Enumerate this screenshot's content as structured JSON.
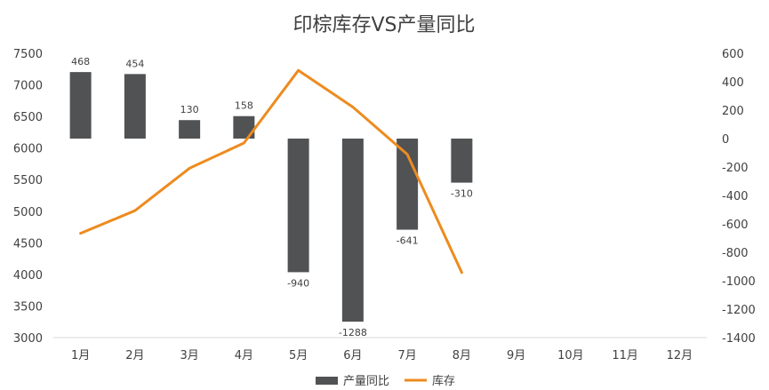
{
  "chart_data": {
    "type": "bar+line",
    "title": "印棕库存VS产量同比",
    "categories": [
      "1月",
      "2月",
      "3月",
      "4月",
      "5月",
      "6月",
      "7月",
      "8月",
      "9月",
      "10月",
      "11月",
      "12月"
    ],
    "series": [
      {
        "name": "产量同比",
        "type": "bar",
        "axis": "right",
        "color": "#505254",
        "values": [
          468,
          454,
          130,
          158,
          -940,
          -1288,
          -641,
          -310,
          null,
          null,
          null,
          null
        ]
      },
      {
        "name": "库存",
        "type": "line",
        "axis": "left",
        "color": "#ED8B1F",
        "values": [
          4650,
          5010,
          5680,
          6080,
          7230,
          6650,
          5900,
          4030,
          null,
          null,
          null,
          null
        ]
      }
    ],
    "y_left": {
      "min": 3000,
      "max": 7500,
      "ticks": [
        3000,
        3500,
        4000,
        4500,
        5000,
        5500,
        6000,
        6500,
        7000,
        7500
      ]
    },
    "y_right": {
      "min": -1400,
      "max": 600,
      "ticks": [
        600,
        400,
        200,
        0,
        -200,
        -400,
        -600,
        -800,
        -1000,
        -1200,
        -1400
      ]
    },
    "legend": {
      "position": "bottom",
      "items": [
        "产量同比",
        "库存"
      ]
    },
    "grid": false
  }
}
